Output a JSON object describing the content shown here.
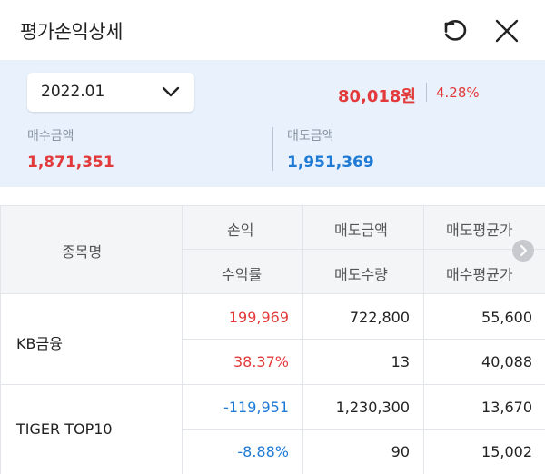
{
  "header": {
    "title": "평가손익상세"
  },
  "summary": {
    "month": "2022.01",
    "pnl_amount": "80,018원",
    "pnl_rate": "4.28%",
    "buy_label": "매수금액",
    "buy_value": "1,871,351",
    "sell_label": "매도금액",
    "sell_value": "1,951,369"
  },
  "table": {
    "headers": {
      "name": "종목명",
      "pnl": "손익",
      "return_rate": "수익률",
      "sell_amount": "매도금액",
      "sell_qty": "매도수량",
      "avg_sell_price": "매도평균가",
      "avg_buy_price": "매수평균가"
    },
    "rows": [
      {
        "name": "KB금융",
        "pnl": "199,969",
        "return_rate": "38.37%",
        "sell_amount": "722,800",
        "sell_qty": "13",
        "avg_sell_price": "55,600",
        "avg_buy_price": "40,088"
      },
      {
        "name": "TIGER TOP10",
        "pnl": "-119,951",
        "return_rate": "-8.88%",
        "sell_amount": "1,230,300",
        "sell_qty": "90",
        "avg_sell_price": "13,670",
        "avg_buy_price": "15,002"
      }
    ]
  },
  "colors": {
    "profit": "#e23a3a",
    "loss": "#1e7ad4",
    "summary_bg": "#e8f1fc"
  },
  "icons": {
    "refresh": "refresh-icon",
    "close": "close-icon",
    "dropdown": "chevron-down-icon",
    "scroll": "chevron-right-icon"
  }
}
